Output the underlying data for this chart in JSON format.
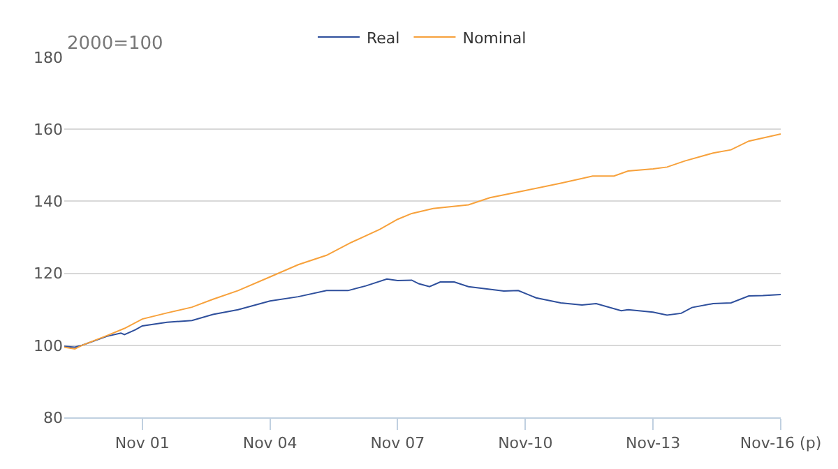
{
  "chart_data": {
    "type": "line",
    "ylabel": "2000=100",
    "legend": "top",
    "grid": "y",
    "marker": "none",
    "line_style": "solid",
    "xlim": [
      "2000-01",
      "2016-11"
    ],
    "xticks": [
      {
        "value": "2001-11",
        "label": "Nov 01"
      },
      {
        "value": "2004-11",
        "label": "Nov 04"
      },
      {
        "value": "2007-11",
        "label": "Nov 07"
      },
      {
        "value": "2010-11",
        "label": "Nov-10"
      },
      {
        "value": "2013-11",
        "label": "Nov-13"
      },
      {
        "value": "2016-11",
        "label": "Nov-16 (p)"
      }
    ],
    "ylim": [
      80,
      180
    ],
    "yticks": [
      80,
      100,
      120,
      140,
      160,
      180
    ],
    "series": [
      {
        "name": "Real",
        "color": "#2e4f9c",
        "x": [
          "2000-01",
          "2000-04",
          "2000-06",
          "2001-01",
          "2001-05",
          "2001-06",
          "2001-09",
          "2001-11",
          "2002-06",
          "2003-01",
          "2003-07",
          "2004-02",
          "2004-11",
          "2005-07",
          "2006-03",
          "2006-09",
          "2007-02",
          "2007-08",
          "2007-11",
          "2008-03",
          "2008-05",
          "2008-08",
          "2008-11",
          "2009-03",
          "2009-07",
          "2010-05",
          "2010-09",
          "2011-02",
          "2011-09",
          "2012-03",
          "2012-07",
          "2013-02",
          "2013-04",
          "2013-11",
          "2014-03",
          "2014-07",
          "2014-10",
          "2015-04",
          "2015-09",
          "2016-02",
          "2016-06",
          "2016-11"
        ],
        "values": [
          99.7,
          99.5,
          100,
          102.5,
          103.4,
          103,
          104.3,
          105.4,
          106.4,
          106.9,
          108.6,
          109.9,
          112.3,
          113.5,
          115.2,
          115.2,
          116.5,
          118.4,
          118,
          118.1,
          117.1,
          116.3,
          117.6,
          117.6,
          116.3,
          115.1,
          115.2,
          113.2,
          111.8,
          111.2,
          111.6,
          109.6,
          109.9,
          109.2,
          108.4,
          108.9,
          110.5,
          111.6,
          111.8,
          113.7,
          113.8,
          114.1
        ]
      },
      {
        "name": "Nominal",
        "color": "#f7a13b",
        "x": [
          "2000-01",
          "2000-04",
          "2000-06",
          "2001-01",
          "2001-06",
          "2001-11",
          "2002-06",
          "2003-01",
          "2003-07",
          "2004-02",
          "2004-11",
          "2005-07",
          "2006-03",
          "2006-10",
          "2007-06",
          "2007-11",
          "2008-03",
          "2008-09",
          "2009-07",
          "2010-01",
          "2010-11",
          "2011-09",
          "2012-06",
          "2012-12",
          "2013-04",
          "2013-11",
          "2014-03",
          "2014-08",
          "2015-04",
          "2015-09",
          "2016-02",
          "2016-11"
        ],
        "values": [
          99.5,
          99,
          100,
          102.7,
          104.7,
          107.3,
          109,
          110.6,
          112.8,
          115.2,
          119,
          122.4,
          125,
          128.6,
          132.2,
          135,
          136.6,
          138,
          139,
          141,
          143,
          145,
          147,
          147,
          148.4,
          149,
          149.5,
          151.2,
          153.4,
          154.3,
          156.7,
          158.7
        ]
      }
    ]
  }
}
